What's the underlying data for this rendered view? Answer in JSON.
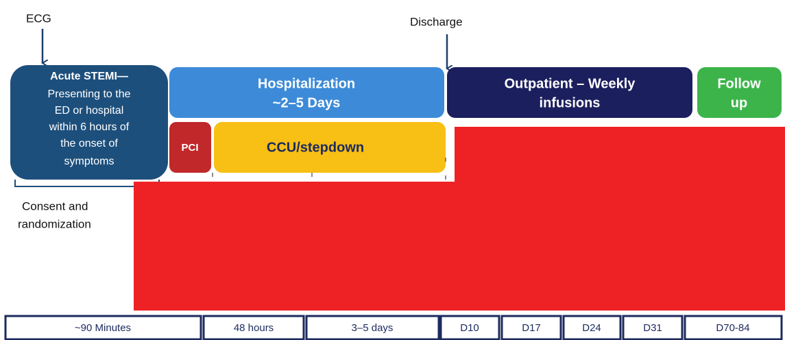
{
  "annotations": {
    "ecg": "ECG",
    "discharge": "Discharge",
    "consent": [
      "Consent and",
      "randomization"
    ]
  },
  "phases": {
    "stemi": {
      "title": "Acute STEMI—",
      "lines": [
        "Presenting to the",
        "ED or hospital",
        "within 6 hours of",
        "the onset of",
        "symptoms"
      ]
    },
    "hospitalization": [
      "Hospitalization",
      "~2–5 Days"
    ],
    "outpatient": [
      "Outpatient – Weekly",
      "infusions"
    ],
    "follow_up": [
      "Follow",
      "up"
    ],
    "pci": "PCI",
    "ccu": "CCU/stepdown"
  },
  "timeline": [
    "~90 Minutes",
    "48 hours",
    "3–5 days",
    "D10",
    "D17",
    "D24",
    "D31",
    "D70-84"
  ]
}
